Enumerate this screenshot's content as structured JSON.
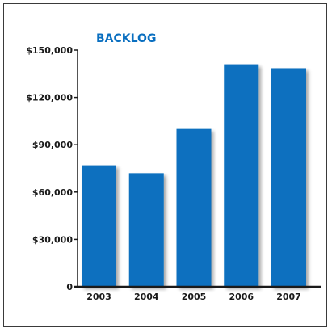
{
  "chart_data": {
    "type": "bar",
    "title": "BACKLOG",
    "xlabel": "",
    "ylabel": "",
    "categories": [
      "2003",
      "2004",
      "2005",
      "2006",
      "2007"
    ],
    "values": [
      77000,
      72000,
      100000,
      141000,
      138500
    ],
    "ylim": [
      0,
      150000
    ],
    "yticks": [
      0,
      30000,
      60000,
      90000,
      120000,
      150000
    ],
    "ytick_labels": [
      "0",
      "$30,000",
      "$60,000",
      "$90,000",
      "$120,000",
      "$150,000"
    ],
    "bar_color": "#0a70bf",
    "grid": false,
    "legend": "none"
  }
}
